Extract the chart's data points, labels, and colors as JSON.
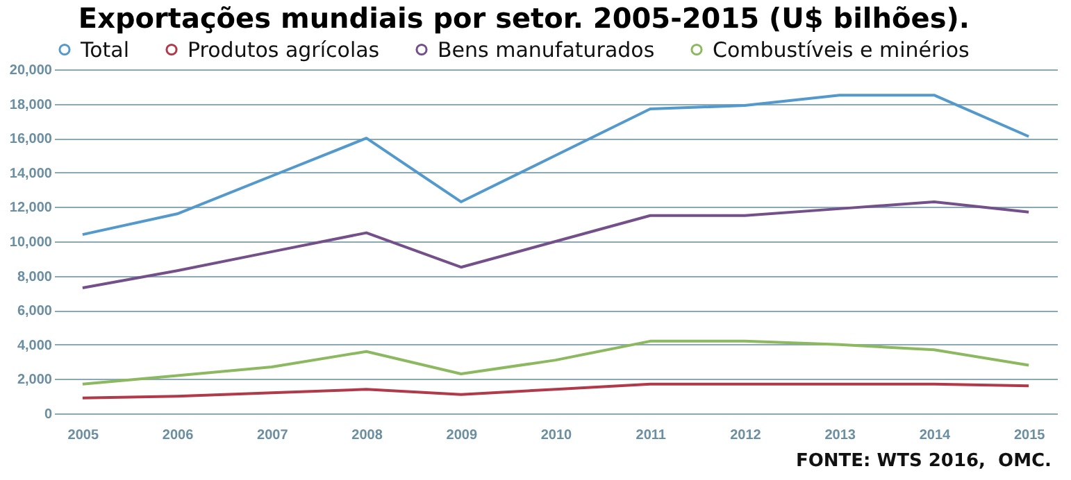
{
  "chart_data": {
    "type": "line",
    "title": "Exportações mundiais por setor. 2005-2015 (U$ bilhões).",
    "categories": [
      "2005",
      "2006",
      "2007",
      "2008",
      "2009",
      "2010",
      "2011",
      "2012",
      "2013",
      "2014",
      "2015"
    ],
    "series": [
      {
        "name": "Total",
        "color": "#5499cc",
        "values": [
          10400,
          11600,
          13800,
          16000,
          12300,
          15000,
          17700,
          17900,
          18500,
          18500,
          16100
        ]
      },
      {
        "name": "Produtos agrícolas",
        "color": "#b03a4a",
        "values": [
          900,
          1000,
          1200,
          1400,
          1100,
          1400,
          1700,
          1700,
          1700,
          1700,
          1600
        ]
      },
      {
        "name": "Bens manufaturados",
        "color": "#74508a",
        "values": [
          7300,
          8300,
          9400,
          10500,
          8500,
          10000,
          11500,
          11500,
          11900,
          12300,
          11700
        ]
      },
      {
        "name": "Combustíveis e minérios",
        "color": "#8cb860",
        "values": [
          1700,
          2200,
          2700,
          3600,
          2300,
          3100,
          4200,
          4200,
          4000,
          3700,
          2800
        ]
      }
    ],
    "ylim": [
      0,
      20000
    ],
    "yticks": [
      0,
      {
        "value": 2000,
        "label": "2,000"
      },
      {
        "value": 4000,
        "label": "4,000"
      },
      {
        "value": 6000,
        "label": "6,000"
      },
      {
        "value": 8000,
        "label": "8,000"
      },
      {
        "value": 10000,
        "label": "10,000"
      },
      {
        "value": 12000,
        "label": "12,000"
      },
      {
        "value": 14000,
        "label": "14,000"
      },
      {
        "value": 16000,
        "label": "16,000"
      },
      {
        "value": 18000,
        "label": "18,000"
      },
      {
        "value": 20000,
        "label": "20,000"
      }
    ],
    "grid": "y",
    "legend": "top",
    "line_style": "solid",
    "annotations": [
      "FONTE: WTS 2016,  OMC."
    ]
  }
}
